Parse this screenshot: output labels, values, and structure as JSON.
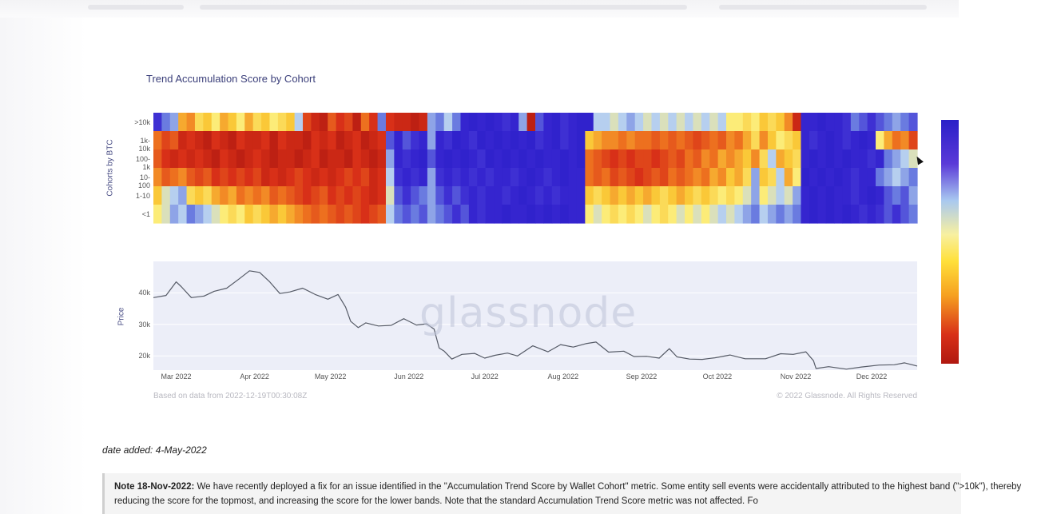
{
  "chart_data": {
    "type": "heatmap",
    "title": "Trend Accumulation Score by Cohort",
    "heatmap": {
      "ylabel": "Cohorts by BTC",
      "rows": [
        ">10k",
        "1k-10k",
        "100-1k",
        "10-100",
        "1-10",
        "<1"
      ],
      "scale": [
        0,
        1
      ],
      "segments": [
        [
          [
            0.15,
            0.25,
            0.3,
            0.6,
            0.65,
            0.5,
            0.55,
            0.45,
            0.6,
            0.55,
            0.45,
            0.6,
            0.5,
            0.55,
            0.45,
            0.5,
            0.55,
            0.35,
            0.8,
            0.9,
            0.95,
            0.75,
            0.85,
            0.8,
            0.95,
            0.7,
            0.85,
            0.25,
            0.85,
            0.9,
            0.9,
            0.95,
            0.9,
            0.3,
            0.25,
            0.35,
            0.25,
            0.1,
            0.05,
            0.1,
            0.05,
            0.1,
            0.15,
            0.1,
            0.3,
            0.95,
            0.2,
            0.1,
            0.05,
            0.15,
            0.1,
            0.05,
            0.05,
            0.35,
            0.35,
            0.4,
            0.35,
            0.3,
            0.35,
            0.4,
            0.35,
            0.4,
            0.35,
            0.4,
            0.35,
            0.4,
            0.35,
            0.4,
            0.35,
            0.45,
            0.45,
            0.5,
            0.45,
            0.55,
            0.5,
            0.55,
            0.65,
            0.9,
            0.1,
            0.1,
            0.05,
            0.1,
            0.1,
            0.15,
            0.25,
            0.2,
            0.15,
            0.2,
            0.25,
            0.3,
            0.25,
            0.2
          ],
          [
            0.7,
            0.8,
            0.75,
            0.9,
            0.85,
            0.9,
            0.95,
            0.85,
            0.9,
            0.95,
            0.85,
            0.9,
            0.9,
            0.85,
            0.95,
            0.85,
            0.9,
            0.9,
            0.95,
            0.85,
            0.9,
            0.85,
            0.95,
            0.9,
            0.85,
            0.95,
            0.9,
            0.85,
            0.2,
            0.1,
            0.2,
            0.15,
            0.1,
            0.3,
            0.1,
            0.15,
            0.05,
            0.1,
            0.15,
            0.05,
            0.1,
            0.05,
            0.1,
            0.05,
            0.1,
            0.05,
            0.15,
            0.1,
            0.05,
            0.15,
            0.1,
            0.05,
            0.55,
            0.6,
            0.65,
            0.65,
            0.7,
            0.65,
            0.7,
            0.7,
            0.75,
            0.7,
            0.75,
            0.7,
            0.75,
            0.8,
            0.75,
            0.7,
            0.75,
            0.65,
            0.7,
            0.6,
            0.5,
            0.65,
            0.55,
            0.45,
            0.5,
            0.55,
            0.1,
            0.15,
            0.1,
            0.05,
            0.1,
            0.15,
            0.1,
            0.05,
            0.1,
            0.45,
            0.6,
            0.7,
            0.65,
            0.8
          ],
          [
            0.75,
            0.85,
            0.9,
            0.85,
            0.9,
            0.85,
            0.9,
            0.95,
            0.85,
            0.9,
            0.95,
            0.9,
            0.85,
            0.9,
            0.95,
            0.9,
            0.9,
            0.95,
            0.9,
            0.85,
            0.95,
            0.9,
            0.9,
            0.95,
            0.85,
            0.9,
            0.95,
            0.9,
            0.3,
            0.1,
            0.15,
            0.1,
            0.05,
            0.2,
            0.1,
            0.05,
            0.1,
            0.05,
            0.1,
            0.15,
            0.05,
            0.1,
            0.05,
            0.1,
            0.05,
            0.1,
            0.05,
            0.1,
            0.1,
            0.05,
            0.1,
            0.05,
            0.7,
            0.75,
            0.8,
            0.85,
            0.8,
            0.85,
            0.8,
            0.8,
            0.85,
            0.8,
            0.75,
            0.8,
            0.7,
            0.75,
            0.65,
            0.7,
            0.6,
            0.65,
            0.6,
            0.55,
            0.65,
            0.5,
            0.35,
            0.6,
            0.55,
            0.5,
            0.1,
            0.05,
            0.1,
            0.05,
            0.1,
            0.05,
            0.1,
            0.1,
            0.15,
            0.1,
            0.25,
            0.3,
            0.35,
            0.4
          ],
          [
            0.65,
            0.75,
            0.7,
            0.65,
            0.75,
            0.8,
            0.75,
            0.85,
            0.8,
            0.85,
            0.8,
            0.85,
            0.8,
            0.9,
            0.85,
            0.9,
            0.85,
            0.8,
            0.85,
            0.9,
            0.85,
            0.9,
            0.85,
            0.8,
            0.85,
            0.8,
            0.9,
            0.85,
            0.35,
            0.15,
            0.1,
            0.15,
            0.1,
            0.3,
            0.15,
            0.1,
            0.15,
            0.1,
            0.15,
            0.1,
            0.15,
            0.1,
            0.1,
            0.15,
            0.1,
            0.05,
            0.1,
            0.15,
            0.1,
            0.05,
            0.1,
            0.1,
            0.7,
            0.75,
            0.7,
            0.8,
            0.75,
            0.8,
            0.85,
            0.8,
            0.75,
            0.8,
            0.7,
            0.75,
            0.7,
            0.65,
            0.7,
            0.6,
            0.65,
            0.55,
            0.6,
            0.5,
            0.3,
            0.55,
            0.5,
            0.35,
            0.6,
            0.45,
            0.05,
            0.1,
            0.05,
            0.1,
            0.05,
            0.1,
            0.15,
            0.1,
            0.1,
            0.25,
            0.3,
            0.35,
            0.3,
            0.25
          ],
          [
            0.55,
            0.4,
            0.35,
            0.3,
            0.5,
            0.55,
            0.5,
            0.6,
            0.65,
            0.6,
            0.7,
            0.65,
            0.7,
            0.65,
            0.75,
            0.7,
            0.75,
            0.8,
            0.85,
            0.8,
            0.75,
            0.85,
            0.8,
            0.85,
            0.8,
            0.85,
            0.9,
            0.85,
            0.4,
            0.2,
            0.15,
            0.2,
            0.25,
            0.3,
            0.2,
            0.15,
            0.2,
            0.15,
            0.1,
            0.15,
            0.1,
            0.1,
            0.15,
            0.1,
            0.05,
            0.1,
            0.15,
            0.1,
            0.15,
            0.1,
            0.1,
            0.1,
            0.55,
            0.5,
            0.55,
            0.6,
            0.55,
            0.6,
            0.55,
            0.6,
            0.55,
            0.5,
            0.55,
            0.6,
            0.55,
            0.5,
            0.55,
            0.5,
            0.45,
            0.5,
            0.45,
            0.4,
            0.3,
            0.45,
            0.4,
            0.35,
            0.4,
            0.3,
            0.1,
            0.05,
            0.1,
            0.05,
            0.1,
            0.1,
            0.15,
            0.1,
            0.05,
            0.1,
            0.2,
            0.25,
            0.2,
            0.3
          ],
          [
            0.45,
            0.4,
            0.3,
            0.35,
            0.25,
            0.3,
            0.35,
            0.4,
            0.45,
            0.5,
            0.45,
            0.55,
            0.5,
            0.55,
            0.6,
            0.55,
            0.6,
            0.65,
            0.7,
            0.75,
            0.7,
            0.75,
            0.8,
            0.75,
            0.8,
            0.85,
            0.8,
            0.75,
            0.35,
            0.25,
            0.2,
            0.25,
            0.2,
            0.3,
            0.25,
            0.2,
            0.15,
            0.2,
            0.1,
            0.15,
            0.1,
            0.1,
            0.05,
            0.1,
            0.1,
            0.05,
            0.1,
            0.05,
            0.1,
            0.05,
            0.1,
            0.1,
            0.45,
            0.4,
            0.45,
            0.5,
            0.45,
            0.5,
            0.45,
            0.4,
            0.45,
            0.5,
            0.45,
            0.4,
            0.45,
            0.4,
            0.45,
            0.4,
            0.35,
            0.4,
            0.35,
            0.3,
            0.25,
            0.35,
            0.3,
            0.25,
            0.3,
            0.25,
            0.1,
            0.05,
            0.1,
            0.05,
            0.1,
            0.05,
            0.1,
            0.15,
            0.1,
            0.15,
            0.2,
            0.15,
            0.2,
            0.25
          ]
        ]
      ]
    },
    "price": {
      "ylabel": "Price",
      "yticks": [
        "40k",
        "30k",
        "20k"
      ],
      "ytick_values": [
        40000,
        30000,
        20000
      ],
      "ylim": [
        15500,
        50000
      ],
      "x_start": "2022-02-20",
      "x_end": "2022-12-19",
      "xticks": [
        "Mar 2022",
        "Apr 2022",
        "May 2022",
        "Jun 2022",
        "Jul 2022",
        "Aug 2022",
        "Sep 2022",
        "Oct 2022",
        "Nov 2022",
        "Dec 2022"
      ],
      "xtick_dates": [
        "2022-03-01",
        "2022-04-01",
        "2022-05-01",
        "2022-06-01",
        "2022-07-01",
        "2022-08-01",
        "2022-09-01",
        "2022-10-01",
        "2022-11-01",
        "2022-12-01"
      ],
      "series": [
        {
          "x": "2022-02-20",
          "y": 38500
        },
        {
          "x": "2022-02-25",
          "y": 39200
        },
        {
          "x": "2022-03-01",
          "y": 43500
        },
        {
          "x": "2022-03-03",
          "y": 42000
        },
        {
          "x": "2022-03-07",
          "y": 38500
        },
        {
          "x": "2022-03-12",
          "y": 39000
        },
        {
          "x": "2022-03-16",
          "y": 40500
        },
        {
          "x": "2022-03-21",
          "y": 41500
        },
        {
          "x": "2022-03-26",
          "y": 44500
        },
        {
          "x": "2022-03-30",
          "y": 47000
        },
        {
          "x": "2022-04-03",
          "y": 46500
        },
        {
          "x": "2022-04-07",
          "y": 43500
        },
        {
          "x": "2022-04-11",
          "y": 39800
        },
        {
          "x": "2022-04-15",
          "y": 40300
        },
        {
          "x": "2022-04-20",
          "y": 41500
        },
        {
          "x": "2022-04-25",
          "y": 39500
        },
        {
          "x": "2022-04-30",
          "y": 38000
        },
        {
          "x": "2022-05-04",
          "y": 39500
        },
        {
          "x": "2022-05-07",
          "y": 35500
        },
        {
          "x": "2022-05-09",
          "y": 31000
        },
        {
          "x": "2022-05-12",
          "y": 29000
        },
        {
          "x": "2022-05-15",
          "y": 30500
        },
        {
          "x": "2022-05-20",
          "y": 29500
        },
        {
          "x": "2022-05-25",
          "y": 29700
        },
        {
          "x": "2022-05-30",
          "y": 31800
        },
        {
          "x": "2022-06-04",
          "y": 29800
        },
        {
          "x": "2022-06-08",
          "y": 30200
        },
        {
          "x": "2022-06-11",
          "y": 28500
        },
        {
          "x": "2022-06-13",
          "y": 22500
        },
        {
          "x": "2022-06-15",
          "y": 21500
        },
        {
          "x": "2022-06-18",
          "y": 19000
        },
        {
          "x": "2022-06-22",
          "y": 20500
        },
        {
          "x": "2022-06-27",
          "y": 20800
        },
        {
          "x": "2022-07-01",
          "y": 19300
        },
        {
          "x": "2022-07-05",
          "y": 20200
        },
        {
          "x": "2022-07-10",
          "y": 20900
        },
        {
          "x": "2022-07-14",
          "y": 20000
        },
        {
          "x": "2022-07-20",
          "y": 23200
        },
        {
          "x": "2022-07-26",
          "y": 21300
        },
        {
          "x": "2022-07-31",
          "y": 23600
        },
        {
          "x": "2022-08-05",
          "y": 22800
        },
        {
          "x": "2022-08-10",
          "y": 23900
        },
        {
          "x": "2022-08-14",
          "y": 24400
        },
        {
          "x": "2022-08-19",
          "y": 21200
        },
        {
          "x": "2022-08-25",
          "y": 21500
        },
        {
          "x": "2022-08-29",
          "y": 19800
        },
        {
          "x": "2022-09-03",
          "y": 19900
        },
        {
          "x": "2022-09-08",
          "y": 19300
        },
        {
          "x": "2022-09-12",
          "y": 22300
        },
        {
          "x": "2022-09-15",
          "y": 19700
        },
        {
          "x": "2022-09-20",
          "y": 19000
        },
        {
          "x": "2022-09-25",
          "y": 18900
        },
        {
          "x": "2022-09-30",
          "y": 19400
        },
        {
          "x": "2022-10-06",
          "y": 20300
        },
        {
          "x": "2022-10-12",
          "y": 19100
        },
        {
          "x": "2022-10-20",
          "y": 19100
        },
        {
          "x": "2022-10-26",
          "y": 20700
        },
        {
          "x": "2022-10-31",
          "y": 20500
        },
        {
          "x": "2022-11-05",
          "y": 21300
        },
        {
          "x": "2022-11-08",
          "y": 18500
        },
        {
          "x": "2022-11-09",
          "y": 16000
        },
        {
          "x": "2022-11-14",
          "y": 16600
        },
        {
          "x": "2022-11-21",
          "y": 15800
        },
        {
          "x": "2022-11-27",
          "y": 16500
        },
        {
          "x": "2022-12-04",
          "y": 17100
        },
        {
          "x": "2022-12-10",
          "y": 17200
        },
        {
          "x": "2022-12-14",
          "y": 17800
        },
        {
          "x": "2022-12-19",
          "y": 16800
        }
      ]
    },
    "watermark": "glassnode",
    "footer_left": "Based on data from 2022-12-19T00:30:08Z",
    "footer_right": "© 2022 Glassnode. All Rights Reserved"
  },
  "colors": {
    "low": "#b01810",
    "mid": "#ffe03a",
    "high": "#2a1fc8",
    "line": "#555a66",
    "panel": "#eceef8"
  },
  "page": {
    "date_added": "date added: 4-May-2022",
    "note_label": "Note 18-Nov-2022:",
    "note_text": " We have recently deployed a fix for an issue identified in the \"Accumulation Trend Score by Wallet Cohort\" metric. Some entity sell events were accidentally attributed to the highest band (\">10k\"), thereby reducing the score for the topmost, and increasing the score for the lower bands. Note that the standard Accumulation Trend Score metric was not affected. Fo"
  }
}
